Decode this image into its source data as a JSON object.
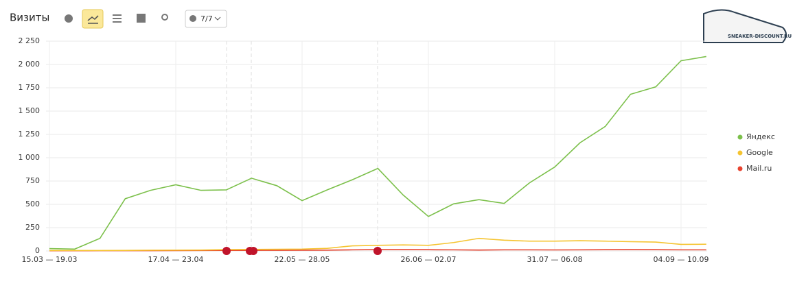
{
  "header": {
    "title": "Визиты",
    "filter": "7/7",
    "logo": "SNEAKER-DISCOUNT.RU"
  },
  "chart_data": {
    "type": "line",
    "categories": [
      "15.03 — 19.03",
      null,
      null,
      null,
      null,
      "17.04 — 23.04",
      null,
      null,
      null,
      null,
      "22.05 — 28.05",
      null,
      null,
      null,
      null,
      "26.06 — 02.07",
      null,
      null,
      null,
      null,
      "31.07 — 06.08",
      null,
      null,
      null,
      null,
      "04.09 — 10.09",
      null
    ],
    "series": [
      {
        "name": "Яндекс",
        "color": "#7cc04b",
        "values": [
          25,
          20,
          135,
          560,
          650,
          710,
          650,
          655,
          780,
          700,
          540,
          655,
          765,
          885,
          600,
          370,
          505,
          550,
          510,
          730,
          900,
          1160,
          1335,
          1680,
          1760,
          2040,
          2085
        ]
      },
      {
        "name": "Google",
        "color": "#f5c431",
        "values": [
          5,
          5,
          5,
          6,
          8,
          9,
          10,
          14,
          16,
          18,
          20,
          28,
          55,
          60,
          65,
          60,
          90,
          135,
          115,
          105,
          105,
          110,
          105,
          100,
          95,
          70,
          72
        ]
      },
      {
        "name": "Mail.ru",
        "color": "#e8432f",
        "values": [
          2,
          2,
          3,
          3,
          3,
          4,
          5,
          6,
          6,
          7,
          8,
          9,
          12,
          14,
          14,
          13,
          12,
          10,
          12,
          12,
          11,
          12,
          13,
          14,
          13,
          12,
          12
        ]
      }
    ],
    "ylim": [
      0,
      2250
    ],
    "yticks": [
      0,
      250,
      500,
      750,
      {
        "value": 1000,
        "label": "1 000"
      },
      {
        "value": 1250,
        "label": "1 250"
      },
      {
        "value": 1500,
        "label": "1 500"
      },
      {
        "value": 1750,
        "label": "1 750"
      },
      {
        "value": 2000,
        "label": "2 000"
      },
      {
        "value": 2250,
        "label": "2 250"
      }
    ],
    "grid": true,
    "legend": "right"
  }
}
